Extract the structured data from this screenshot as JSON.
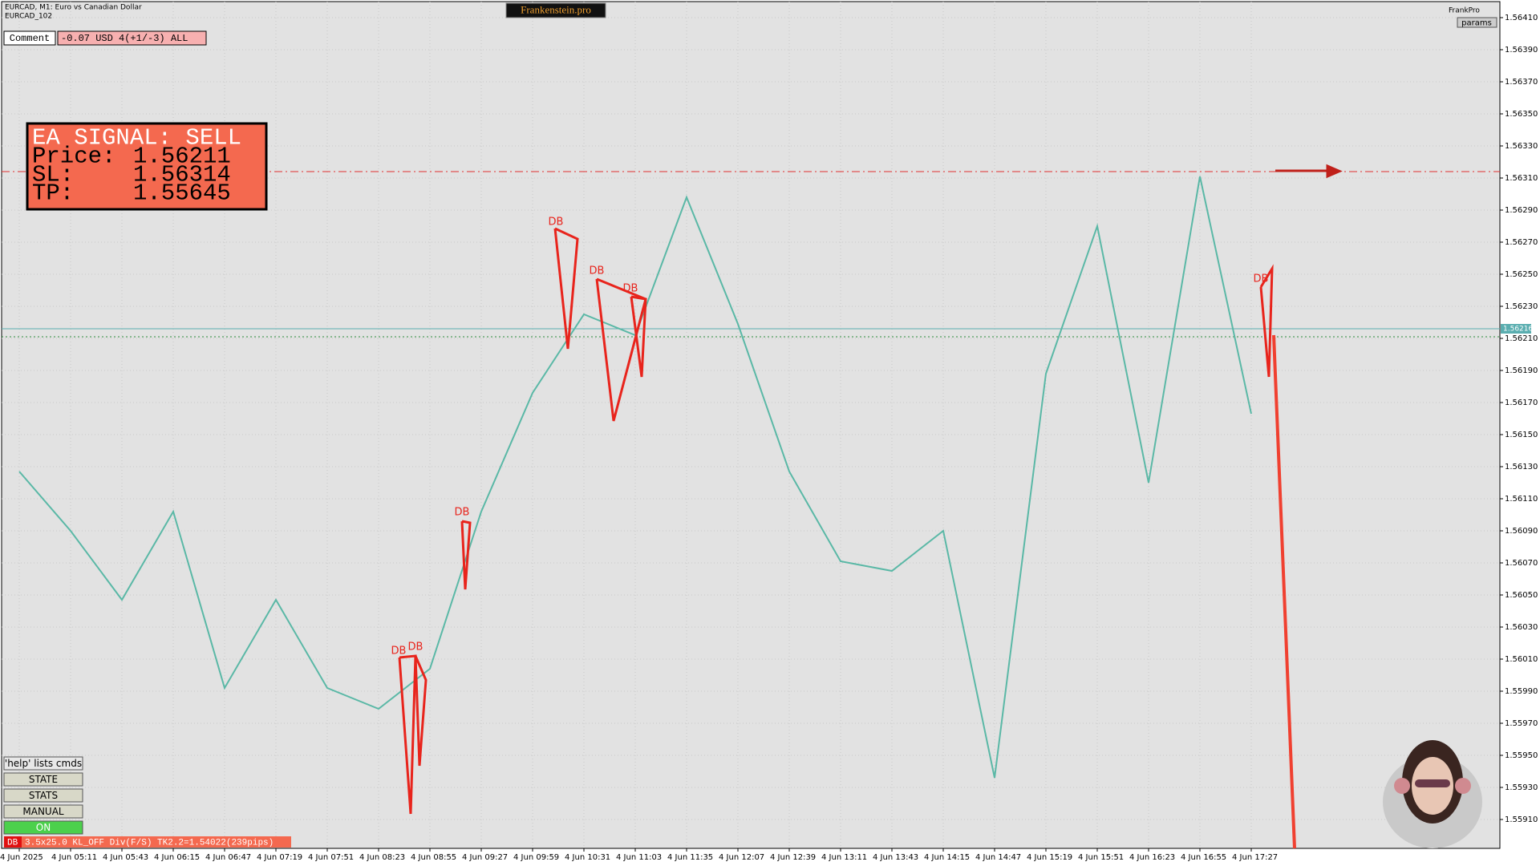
{
  "header": {
    "symbol": "EURCAD, M1: Euro vs Canadian Dollar",
    "account": "EURCAD_102",
    "brand": "Frankenstein.pro",
    "comment": "Comment",
    "status": "-0.07 USD 4(+1/-3) ALL",
    "user": "FrankPro",
    "params": "params"
  },
  "signal": {
    "title": "EA SIGNAL: SELL",
    "price_label": "Price:",
    "price": 1.56211,
    "sl_label": "SL:",
    "sl": 1.56314,
    "tp_label": "TP:",
    "tp": 1.55645
  },
  "patterns": [
    "DB",
    "DB",
    "DB",
    "DB",
    "DB",
    "DB",
    "DB"
  ],
  "buttons": [
    "'help' lists cmds",
    "STATE",
    "STATS",
    "MANUAL",
    "ON"
  ],
  "footer": {
    "tag": "DB",
    "text": "3.5x25.0 KL_OFF Div(F/S) TK2.2=1.54022(239pips)"
  },
  "chart_data": {
    "type": "line",
    "categories": [
      "4 Jun 2025",
      "4 Jun 05:11",
      "4 Jun 05:43",
      "4 Jun 06:15",
      "4 Jun 06:47",
      "4 Jun 07:19",
      "4 Jun 07:51",
      "4 Jun 08:23",
      "4 Jun 08:55",
      "4 Jun 09:27",
      "4 Jun 09:59",
      "4 Jun 10:31",
      "4 Jun 11:03",
      "4 Jun 11:35",
      "4 Jun 12:07",
      "4 Jun 12:39",
      "4 Jun 13:11",
      "4 Jun 13:43",
      "4 Jun 14:15",
      "4 Jun 14:47",
      "4 Jun 15:19",
      "4 Jun 15:51",
      "4 Jun 16:23",
      "4 Jun 16:55",
      "4 Jun 17:27"
    ],
    "values": [
      1.56127,
      1.5609,
      1.56047,
      1.56102,
      1.55992,
      1.56047,
      1.55992,
      1.55979,
      1.56004,
      1.56102,
      1.56176,
      1.56225,
      1.56212,
      1.56298,
      1.56219,
      1.56127,
      1.56071,
      1.56065,
      1.5609,
      1.55936,
      1.56188,
      1.5628,
      1.5612,
      1.56311,
      1.56163
    ],
    "color": "#5ab8a6",
    "current_price": 1.56216,
    "ylim": [
      1.55892,
      1.56421
    ],
    "yticks": [
      {
        "value": 1.5641,
        "label": "1.56410"
      },
      {
        "value": 1.5639,
        "label": "1.56390"
      },
      {
        "value": 1.5637,
        "label": "1.56370"
      },
      {
        "value": 1.5635,
        "label": "1.56350"
      },
      {
        "value": 1.5633,
        "label": "1.56330"
      },
      {
        "value": 1.5631,
        "label": "1.56310"
      },
      {
        "value": 1.5629,
        "label": "1.56290"
      },
      {
        "value": 1.5627,
        "label": "1.56270"
      },
      {
        "value": 1.5625,
        "label": "1.56250"
      },
      {
        "value": 1.5623,
        "label": "1.56230"
      },
      {
        "value": 1.5621,
        "label": "1.56210"
      },
      {
        "value": 1.5619,
        "label": "1.56190"
      },
      {
        "value": 1.5617,
        "label": "1.56170"
      },
      {
        "value": 1.5615,
        "label": "1.56150"
      },
      {
        "value": 1.5613,
        "label": "1.56130"
      },
      {
        "value": 1.5611,
        "label": "1.56110"
      },
      {
        "value": 1.5609,
        "label": "1.56090"
      },
      {
        "value": 1.5607,
        "label": "1.56070"
      },
      {
        "value": 1.5605,
        "label": "1.56050"
      },
      {
        "value": 1.5603,
        "label": "1.56030"
      },
      {
        "value": 1.5601,
        "label": "1.56010"
      },
      {
        "value": 1.5599,
        "label": "1.55990"
      },
      {
        "value": 1.5597,
        "label": "1.55970"
      },
      {
        "value": 1.5595,
        "label": "1.55950"
      },
      {
        "value": 1.5593,
        "label": "1.55930"
      },
      {
        "value": 1.5591,
        "label": "1.55910"
      }
    ],
    "grid": true
  }
}
